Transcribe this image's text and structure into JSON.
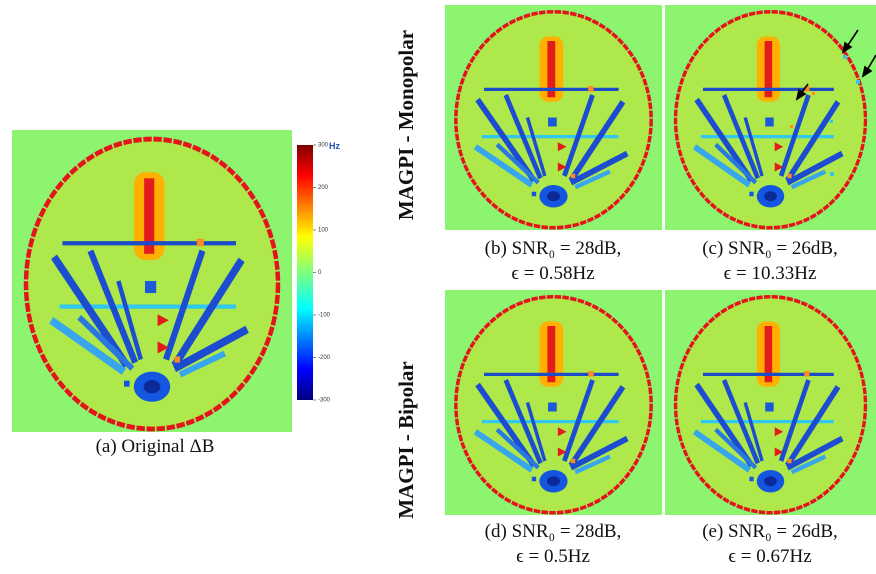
{
  "figure": {
    "panel_a": {
      "caption": "(a) Original ΔB"
    },
    "colorbar": {
      "unit": "Hz",
      "ticks": [
        300,
        200,
        100,
        0,
        -100,
        -200,
        -300
      ]
    },
    "row_labels": [
      "MAGPI - Monopolar",
      "MAGPI - Bipolar"
    ],
    "panels": [
      {
        "caption_line1": "(b) SNR₀ = 28dB,",
        "caption_line2": "ϵ = 0.58Hz"
      },
      {
        "caption_line1": "(c) SNR₀ = 26dB,",
        "caption_line2": "ϵ = 10.33Hz"
      },
      {
        "caption_line1": "(d) SNR₀ = 28dB,",
        "caption_line2": "ϵ = 0.5Hz"
      },
      {
        "caption_line1": "(e) SNR₀ = 26dB,",
        "caption_line2": "ϵ = 0.67Hz"
      }
    ]
  }
}
